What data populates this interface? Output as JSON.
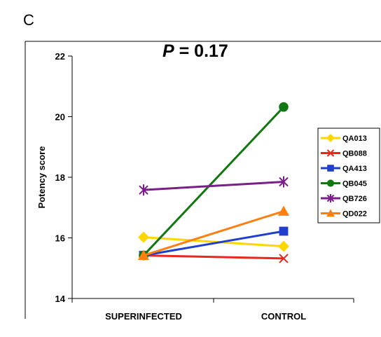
{
  "panel_label": "C",
  "annotation": {
    "p_symbol": "P",
    "p_value": " = 0.17"
  },
  "colors": {
    "QA013": "#FFD700",
    "QB088": "#E8281E",
    "QA413": "#1F3FCC",
    "QB045": "#117711",
    "QB726": "#7A1E8A",
    "QD022": "#FF7F11"
  },
  "chart_data": {
    "type": "line",
    "title": "",
    "xlabel": "",
    "ylabel": "Potency score",
    "categories": [
      "SUPERINFECTED",
      "CONTROL"
    ],
    "ylim": [
      14,
      22
    ],
    "yticks": [
      "14",
      "16",
      "18",
      "20",
      "22"
    ],
    "grid": false,
    "legend_position": "right",
    "series": [
      {
        "name": "QA013",
        "marker": "diamond",
        "color": "#FFD700",
        "values": [
          16.02,
          15.72
        ]
      },
      {
        "name": "QB088",
        "marker": "x",
        "color": "#E8281E",
        "values": [
          15.42,
          15.32
        ]
      },
      {
        "name": "QA413",
        "marker": "square",
        "color": "#1F3FCC",
        "values": [
          15.42,
          16.22
        ]
      },
      {
        "name": "QB045",
        "marker": "circle",
        "color": "#117711",
        "values": [
          15.42,
          20.32
        ]
      },
      {
        "name": "QB726",
        "marker": "asterisk",
        "color": "#7A1E8A",
        "values": [
          17.58,
          17.85
        ]
      },
      {
        "name": "QD022",
        "marker": "triangle",
        "color": "#FF7F11",
        "values": [
          15.42,
          16.88
        ]
      }
    ]
  }
}
